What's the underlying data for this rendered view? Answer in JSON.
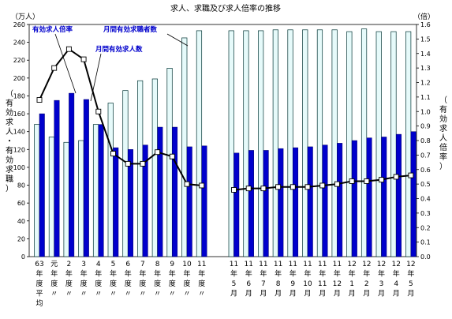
{
  "chart_data": {
    "type": "bar",
    "title": "求人、求職及び求人倍率の推移",
    "y_left_unit": "（万人）",
    "y_right_unit": "（倍）",
    "y_left_label_chars": [
      "（",
      "有",
      "効",
      "求",
      "人",
      "・",
      "有",
      "効",
      "求",
      "職",
      "）"
    ],
    "y_right_label_chars": [
      "（",
      "有",
      "効",
      "求",
      "人",
      "倍",
      "率",
      "）"
    ],
    "y_left_ticks": [
      "0",
      "20",
      "40",
      "60",
      "80",
      "100",
      "120",
      "140",
      "160",
      "180",
      "200",
      "220",
      "240",
      "260"
    ],
    "y_right_ticks": [
      "0.0",
      "0.1",
      "0.2",
      "0.3",
      "0.4",
      "0.5",
      "0.6",
      "0.7",
      "0.8",
      "0.9",
      "1.0",
      "1.1",
      "1.2",
      "1.3",
      "1.4",
      "1.5",
      "1.6"
    ],
    "ylim_left": [
      0,
      260
    ],
    "ylim_right": [
      0,
      1.6
    ],
    "categories": [
      [
        "63",
        "年",
        "度",
        "平",
        "均"
      ],
      [
        "元",
        "年",
        "度",
        "〃"
      ],
      [
        "2",
        "年",
        "度",
        "〃"
      ],
      [
        "3",
        "年",
        "度",
        "〃"
      ],
      [
        "4",
        "年",
        "度",
        "〃"
      ],
      [
        "5",
        "年",
        "度",
        "〃"
      ],
      [
        "6",
        "年",
        "度",
        "〃"
      ],
      [
        "7",
        "年",
        "度",
        "〃"
      ],
      [
        "8",
        "年",
        "度",
        "〃"
      ],
      [
        "9",
        "年",
        "度",
        "〃"
      ],
      [
        "10",
        "年",
        "度",
        "〃"
      ],
      [
        "11",
        "年",
        "度",
        "〃"
      ],
      [
        "11",
        "年",
        "5",
        "月"
      ],
      [
        "11",
        "年",
        "6",
        "月"
      ],
      [
        "11",
        "年",
        "7",
        "月"
      ],
      [
        "11",
        "年",
        "8",
        "月"
      ],
      [
        "11",
        "年",
        "9",
        "月"
      ],
      [
        "11",
        "年",
        "10",
        "月"
      ],
      [
        "11",
        "年",
        "11",
        "月"
      ],
      [
        "11",
        "年",
        "12",
        "月"
      ],
      [
        "12",
        "年",
        "1",
        "月"
      ],
      [
        "12",
        "年",
        "2",
        "月"
      ],
      [
        "12",
        "年",
        "3",
        "月"
      ],
      [
        "12",
        "年",
        "4",
        "月"
      ],
      [
        "12",
        "年",
        "5",
        "月"
      ]
    ],
    "series": [
      {
        "name": "月間有効求職者数",
        "kind": "bar",
        "axis": "left",
        "color": "#e6fafa",
        "values": [
          148,
          134,
          128,
          130,
          148,
          172,
          186,
          197,
          199,
          211,
          245,
          253,
          253,
          253,
          253,
          254,
          254,
          254,
          254,
          254,
          252,
          255,
          252,
          252,
          252
        ]
      },
      {
        "name": "月間有効求人数",
        "kind": "bar",
        "axis": "left",
        "color": "#0000cc",
        "values": [
          160,
          175,
          183,
          176,
          148,
          122,
          120,
          125,
          145,
          145,
          123,
          124,
          116,
          119,
          119,
          121,
          122,
          123,
          125,
          127,
          130,
          133,
          134,
          137,
          140
        ]
      },
      {
        "name": "有効求人倍率",
        "kind": "line",
        "axis": "right",
        "color": "#000000",
        "values": [
          1.08,
          1.3,
          1.43,
          1.36,
          1.0,
          0.71,
          0.64,
          0.64,
          0.72,
          0.69,
          0.5,
          0.49,
          0.46,
          0.47,
          0.47,
          0.48,
          0.48,
          0.48,
          0.49,
          0.5,
          0.52,
          0.52,
          0.53,
          0.55,
          0.56
        ]
      }
    ],
    "annotations": {
      "ratio": "有効求人倍率",
      "openings": "月間有効求人数",
      "seekers": "月間有効求職者数"
    },
    "grid": false
  }
}
